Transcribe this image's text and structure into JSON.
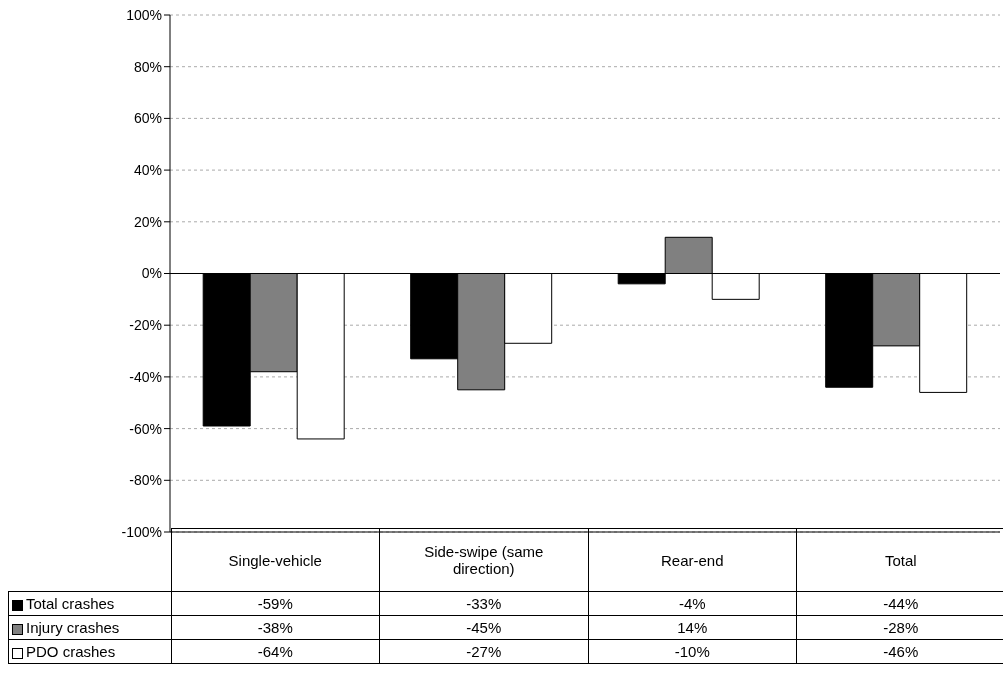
{
  "chart_data": {
    "type": "bar",
    "categories": [
      "Single-vehicle",
      "Side-swipe (same direction)",
      "Rear-end",
      "Total"
    ],
    "series": [
      {
        "name": "Total crashes",
        "color": "#000000",
        "values": [
          -59,
          -33,
          -4,
          -44
        ],
        "value_labels": [
          "-59%",
          "-33%",
          "-4%",
          "-44%"
        ]
      },
      {
        "name": "Injury crashes",
        "color": "#808080",
        "values": [
          -38,
          -45,
          14,
          -28
        ],
        "value_labels": [
          "-38%",
          "-45%",
          "14%",
          "-28%"
        ]
      },
      {
        "name": "PDO crashes",
        "color": "#ffffff",
        "values": [
          -64,
          -27,
          -10,
          -46
        ],
        "value_labels": [
          "-64%",
          "-27%",
          "-10%",
          "-46%"
        ]
      }
    ],
    "ylim": [
      -100,
      100
    ],
    "yticks": [
      {
        "value": -100,
        "label": "-100%"
      },
      {
        "value": -80,
        "label": "-80%"
      },
      {
        "value": -60,
        "label": "-60%"
      },
      {
        "value": -40,
        "label": "-40%"
      },
      {
        "value": -20,
        "label": "-20%"
      },
      {
        "value": 0,
        "label": "0%"
      },
      {
        "value": 20,
        "label": "20%"
      },
      {
        "value": 40,
        "label": "40%"
      },
      {
        "value": 60,
        "label": "60%"
      },
      {
        "value": 80,
        "label": "80%"
      },
      {
        "value": 100,
        "label": "100%"
      }
    ],
    "grid": "y",
    "legend": "bottom left"
  }
}
